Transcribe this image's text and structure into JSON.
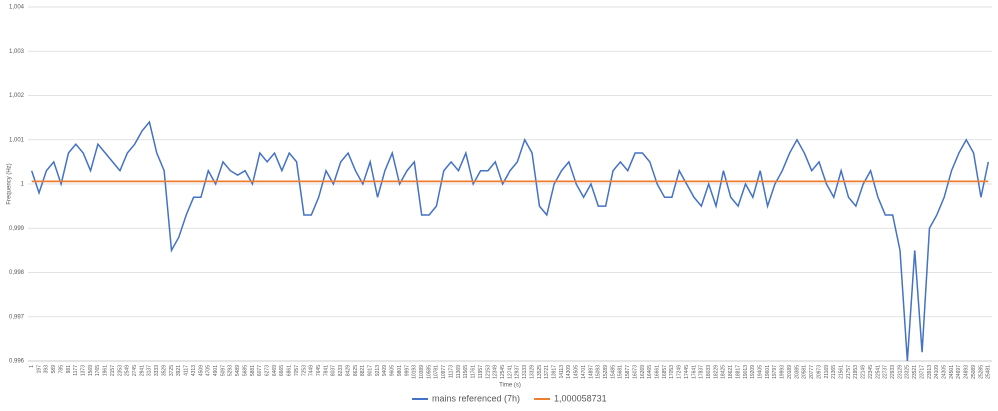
{
  "chart_data": {
    "type": "line",
    "x_label": "Time (s)",
    "y_label": "Frequency (Hz)",
    "categories": [
      1,
      197,
      393,
      589,
      785,
      981,
      1177,
      1373,
      1569,
      1765,
      1961,
      2157,
      2353,
      2549,
      2745,
      2941,
      3137,
      3333,
      3529,
      3725,
      3921,
      4117,
      4313,
      4509,
      4705,
      4901,
      5097,
      5293,
      5489,
      5685,
      5881,
      6077,
      6273,
      6469,
      6665,
      6861,
      7057,
      7253,
      7449,
      7645,
      7841,
      8037,
      8233,
      8429,
      8625,
      8821,
      9017,
      9213,
      9409,
      9605,
      9801,
      9997,
      10193,
      10389,
      10585,
      10781,
      10977,
      11173,
      11369,
      11565,
      11761,
      11957,
      12153,
      12349,
      12545,
      12741,
      12937,
      13133,
      13329,
      13525,
      13721,
      13917,
      14113,
      14309,
      14505,
      14701,
      14897,
      15093,
      15289,
      15485,
      15681,
      15877,
      16073,
      16269,
      16465,
      16661,
      16857,
      17053,
      17249,
      17445,
      17641,
      17837,
      18033,
      18229,
      18425,
      18621,
      18817,
      19013,
      19209,
      19405,
      19601,
      19797,
      19993,
      20189,
      20385,
      20581,
      20777,
      20973,
      21169,
      21365,
      21561,
      21757,
      21953,
      22149,
      22345,
      22541,
      22737,
      22933,
      23129,
      23325,
      23521,
      23717,
      23913,
      24109,
      24305,
      24501,
      24697,
      24893,
      25089,
      25285,
      25481
    ],
    "series": [
      {
        "name": "mains referenced (7h)",
        "color": "#4472c4",
        "values": [
          1.0003,
          0.9998,
          1.0003,
          1.0005,
          1.0,
          1.0007,
          1.0009,
          1.0007,
          1.0003,
          1.0009,
          1.0007,
          1.0005,
          1.0003,
          1.0007,
          1.0009,
          1.0012,
          1.0014,
          1.0007,
          1.0003,
          0.9985,
          0.9988,
          0.9993,
          0.9997,
          0.9997,
          1.0003,
          1.0,
          1.0005,
          1.0003,
          1.0002,
          1.0003,
          1.0,
          1.0007,
          1.0005,
          1.0007,
          1.0003,
          1.0007,
          1.0005,
          0.9993,
          0.9993,
          0.9997,
          1.0003,
          1.0,
          1.0005,
          1.0007,
          1.0003,
          1.0,
          1.0005,
          0.9997,
          1.0003,
          1.0007,
          1.0,
          1.0003,
          1.0005,
          0.9993,
          0.9993,
          0.9995,
          1.0003,
          1.0005,
          1.0003,
          1.0007,
          1.0,
          1.0003,
          1.0003,
          1.0005,
          1.0,
          1.0003,
          1.0005,
          1.001,
          1.0007,
          0.9995,
          0.9993,
          1.0,
          1.0003,
          1.0005,
          1.0,
          0.9997,
          1.0,
          0.9995,
          0.9995,
          1.0003,
          1.0005,
          1.0003,
          1.0007,
          1.0007,
          1.0005,
          1.0,
          0.9997,
          0.9997,
          1.0003,
          1.0,
          0.9997,
          0.9995,
          1.0,
          0.9995,
          1.0003,
          0.9997,
          0.9995,
          1.0,
          0.9997,
          1.0003,
          0.9995,
          1.0,
          1.0003,
          1.0007,
          1.001,
          1.0007,
          1.0003,
          1.0005,
          1.0,
          0.9997,
          1.0003,
          0.9997,
          0.9995,
          1.0,
          1.0003,
          0.9997,
          0.9993,
          0.9993,
          0.9985,
          0.996,
          0.9985,
          0.9962,
          0.999,
          0.9993,
          0.9997,
          1.0003,
          1.0007,
          1.001,
          1.0007,
          0.9997,
          1.0005
        ]
      },
      {
        "name": "1,000058731",
        "color": "#ed7d31",
        "values": [
          1.000058731,
          1.000058731,
          1.000058731,
          1.000058731,
          1.000058731,
          1.000058731,
          1.000058731,
          1.000058731,
          1.000058731,
          1.000058731,
          1.000058731,
          1.000058731,
          1.000058731,
          1.000058731,
          1.000058731,
          1.000058731,
          1.000058731,
          1.000058731,
          1.000058731,
          1.000058731,
          1.000058731,
          1.000058731,
          1.000058731,
          1.000058731,
          1.000058731,
          1.000058731,
          1.000058731,
          1.000058731,
          1.000058731,
          1.000058731,
          1.000058731,
          1.000058731,
          1.000058731,
          1.000058731,
          1.000058731,
          1.000058731,
          1.000058731,
          1.000058731,
          1.000058731,
          1.000058731,
          1.000058731,
          1.000058731,
          1.000058731,
          1.000058731,
          1.000058731,
          1.000058731,
          1.000058731,
          1.000058731,
          1.000058731,
          1.000058731,
          1.000058731,
          1.000058731,
          1.000058731,
          1.000058731,
          1.000058731,
          1.000058731,
          1.000058731,
          1.000058731,
          1.000058731,
          1.000058731,
          1.000058731,
          1.000058731,
          1.000058731,
          1.000058731,
          1.000058731,
          1.000058731,
          1.000058731,
          1.000058731,
          1.000058731,
          1.000058731,
          1.000058731,
          1.000058731,
          1.000058731,
          1.000058731,
          1.000058731,
          1.000058731,
          1.000058731,
          1.000058731,
          1.000058731,
          1.000058731,
          1.000058731,
          1.000058731,
          1.000058731,
          1.000058731,
          1.000058731,
          1.000058731,
          1.000058731,
          1.000058731,
          1.000058731,
          1.000058731,
          1.000058731,
          1.000058731,
          1.000058731,
          1.000058731,
          1.000058731,
          1.000058731,
          1.000058731,
          1.000058731,
          1.000058731,
          1.000058731,
          1.000058731,
          1.000058731,
          1.000058731,
          1.000058731,
          1.000058731,
          1.000058731,
          1.000058731,
          1.000058731,
          1.000058731,
          1.000058731,
          1.000058731,
          1.000058731,
          1.000058731,
          1.000058731,
          1.000058731,
          1.000058731,
          1.000058731,
          1.000058731,
          1.000058731,
          1.000058731,
          1.000058731,
          1.000058731,
          1.000058731,
          1.000058731,
          1.000058731,
          1.000058731,
          1.000058731,
          1.000058731,
          1.000058731,
          1.000058731,
          1.000058731
        ]
      }
    ],
    "ylim": [
      0.996,
      1.004
    ],
    "yticks": [
      {
        "value": 0.996,
        "label": "0,996"
      },
      {
        "value": 0.997,
        "label": "0,997"
      },
      {
        "value": 0.998,
        "label": "0,998"
      },
      {
        "value": 0.999,
        "label": "0,999"
      },
      1,
      {
        "value": 1.001,
        "label": "1,001"
      },
      {
        "value": 1.002,
        "label": "1,002"
      },
      {
        "value": 1.003,
        "label": "1,003"
      },
      {
        "value": 1.004,
        "label": "1,004"
      }
    ],
    "grid": true,
    "legend": "bottom"
  }
}
